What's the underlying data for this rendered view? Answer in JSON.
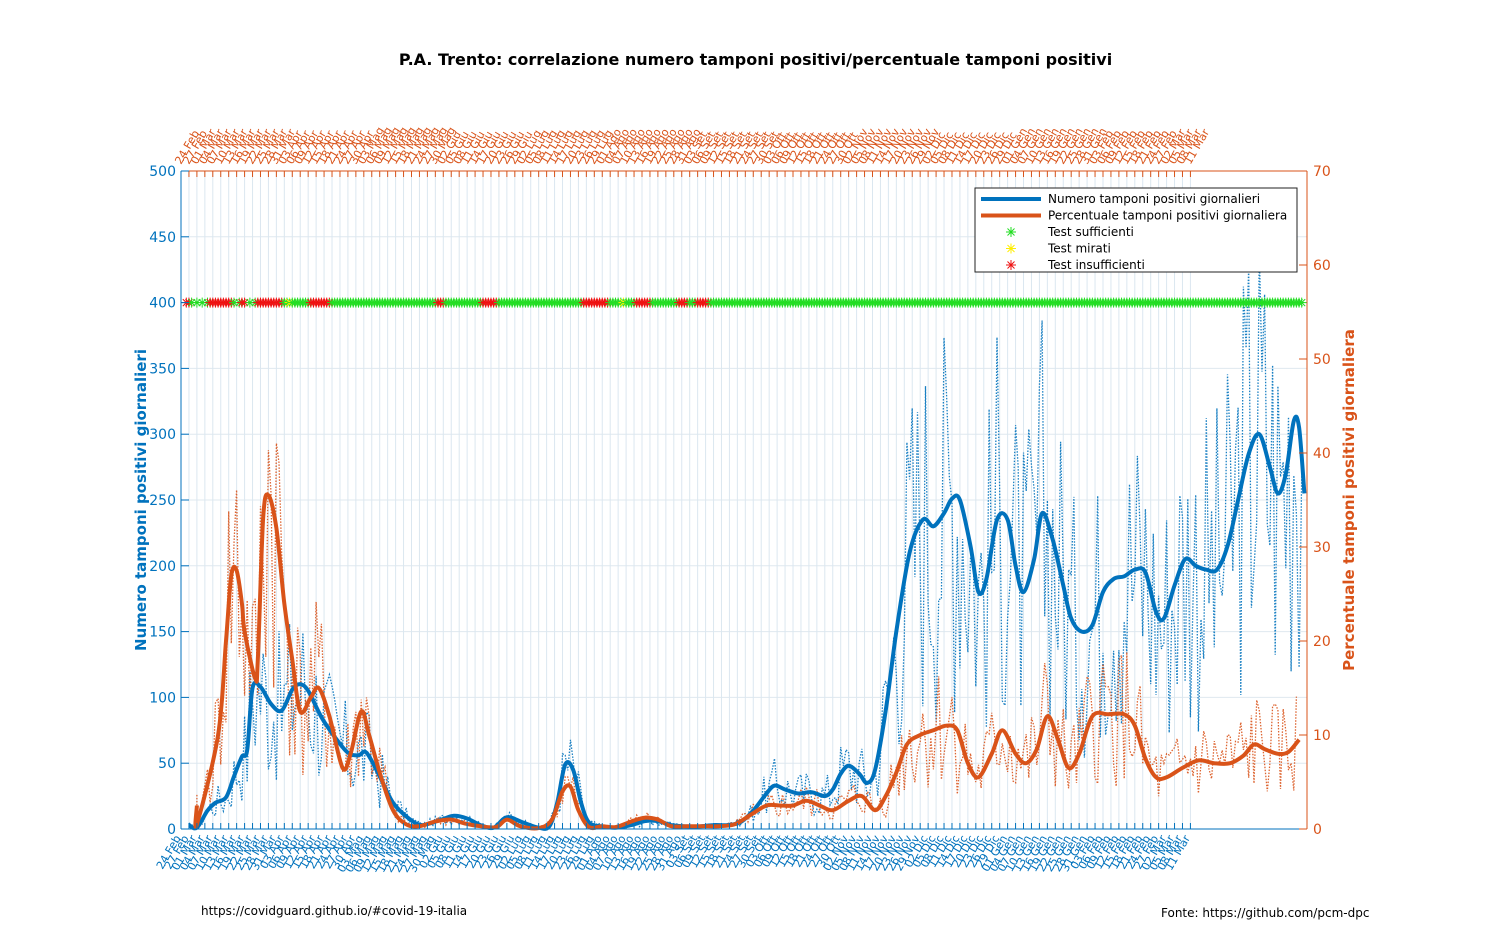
{
  "chart_data": {
    "type": "line",
    "title": "P.A. Trento: correlazione numero tamponi positivi/percentuale tamponi positivi",
    "ylabel_left": "Numero tamponi positivi giornalieri",
    "ylabel_right": "Percentuale tamponi positivi giornaliera",
    "ylim_left": [
      0,
      500
    ],
    "ylim_right": [
      0,
      70
    ],
    "yticks_left": [
      "0",
      "50",
      "100",
      "150",
      "200",
      "250",
      "300",
      "350",
      "400",
      "450",
      "500"
    ],
    "yticks_right": [
      "0",
      "10",
      "20",
      "30",
      "40",
      "50",
      "60",
      "70"
    ],
    "grid": true,
    "legend_position": "top-right",
    "date_range": [
      "2020-02-24",
      "2021-03-11"
    ],
    "x_tick_labels_sample": [
      "24 Feb",
      "27 Feb",
      "01 Mar",
      "04 Mar",
      "07 Mar",
      "10 Mar",
      "13 Mar",
      "16 Mar",
      "19 Mar",
      "22 Mar",
      "25 Mar",
      "28 Mar",
      "31 Mar",
      "03 Apr",
      "06 Apr",
      "09 Apr",
      "12 Apr",
      "15 Apr",
      "18 Apr",
      "21 Apr",
      "24 Apr",
      "27 Apr",
      "30 Apr",
      "03 Mag",
      "06 Mag",
      "09 Mag",
      "12 Mag",
      "15 Mag",
      "18 Mag",
      "21 Mag",
      "24 Mag",
      "27 Mag",
      "30 Mag",
      "02 Giu",
      "05 Giu",
      "08 Giu",
      "11 Giu",
      "14 Giu",
      "17 Giu",
      "20 Giu",
      "23 Giu",
      "26 Giu",
      "29 Giu",
      "02 Lug",
      "05 Lug",
      "08 Lug",
      "11 Lug",
      "14 Lug",
      "17 Lug",
      "20 Lug",
      "23 Lug",
      "26 Lug",
      "29 Lug",
      "01 Ago",
      "04 Ago",
      "07 Ago",
      "10 Ago",
      "13 Ago",
      "16 Ago",
      "19 Ago",
      "22 Ago",
      "25 Ago",
      "28 Ago",
      "31 Ago",
      "03 Set",
      "06 Set",
      "09 Set",
      "12 Set",
      "15 Set",
      "18 Set",
      "21 Set",
      "24 Set",
      "27 Set",
      "30 Set",
      "03 Ott",
      "06 Ott",
      "09 Ott",
      "12 Ott",
      "15 Ott",
      "18 Ott",
      "21 Ott",
      "24 Ott",
      "27 Ott",
      "30 Ott",
      "02 Nov",
      "05 Nov",
      "08 Nov",
      "11 Nov",
      "14 Nov",
      "17 Nov",
      "20 Nov",
      "23 Nov",
      "26 Nov",
      "29 Nov",
      "02 Dic",
      "05 Dic",
      "08 Dic",
      "11 Dic",
      "14 Dic",
      "17 Dic",
      "20 Dic",
      "23 Dic",
      "26 Dic",
      "29 Dic",
      "01 Gen",
      "04 Gen",
      "07 Gen",
      "10 Gen",
      "13 Gen",
      "16 Gen",
      "19 Gen",
      "22 Gen",
      "25 Gen",
      "28 Gen",
      "31 Gen",
      "03 Feb",
      "06 Feb",
      "09 Feb",
      "12 Feb",
      "15 Feb",
      "18 Feb",
      "21 Feb",
      "24 Feb",
      "27 Feb",
      "02 Mar",
      "05 Mar",
      "08 Mar",
      "11 Mar"
    ],
    "series": [
      {
        "name": "Numero tamponi positivi giornalieri",
        "axis": "left",
        "color": "#0072BD",
        "points": [
          [
            "2020-02-27",
            3
          ],
          [
            "2020-03-01",
            1
          ],
          [
            "2020-03-05",
            14
          ],
          [
            "2020-03-08",
            20
          ],
          [
            "2020-03-12",
            24
          ],
          [
            "2020-03-15",
            40
          ],
          [
            "2020-03-18",
            55
          ],
          [
            "2020-03-20",
            60
          ],
          [
            "2020-03-22",
            107
          ],
          [
            "2020-03-25",
            108
          ],
          [
            "2020-03-29",
            95
          ],
          [
            "2020-04-02",
            90
          ],
          [
            "2020-04-06",
            106
          ],
          [
            "2020-04-09",
            110
          ],
          [
            "2020-04-12",
            105
          ],
          [
            "2020-04-17",
            85
          ],
          [
            "2020-04-22",
            70
          ],
          [
            "2020-04-27",
            58
          ],
          [
            "2020-05-01",
            56
          ],
          [
            "2020-05-04",
            58
          ],
          [
            "2020-05-09",
            40
          ],
          [
            "2020-05-14",
            20
          ],
          [
            "2020-05-20",
            8
          ],
          [
            "2020-05-25",
            3
          ],
          [
            "2020-06-01",
            7
          ],
          [
            "2020-06-06",
            10
          ],
          [
            "2020-06-11",
            8
          ],
          [
            "2020-06-16",
            3
          ],
          [
            "2020-06-21",
            1
          ],
          [
            "2020-06-26",
            9
          ],
          [
            "2020-07-02",
            5
          ],
          [
            "2020-07-08",
            1
          ],
          [
            "2020-07-12",
            2
          ],
          [
            "2020-07-15",
            20
          ],
          [
            "2020-07-18",
            49
          ],
          [
            "2020-07-21",
            45
          ],
          [
            "2020-07-24",
            20
          ],
          [
            "2020-07-27",
            5
          ],
          [
            "2020-08-01",
            2
          ],
          [
            "2020-08-06",
            1
          ],
          [
            "2020-08-12",
            3
          ],
          [
            "2020-08-17",
            6
          ],
          [
            "2020-08-22",
            6
          ],
          [
            "2020-08-27",
            3
          ],
          [
            "2020-09-02",
            2
          ],
          [
            "2020-09-07",
            2
          ],
          [
            "2020-09-12",
            3
          ],
          [
            "2020-09-17",
            3
          ],
          [
            "2020-09-22",
            5
          ],
          [
            "2020-09-27",
            14
          ],
          [
            "2020-10-02",
            27
          ],
          [
            "2020-10-05",
            33
          ],
          [
            "2020-10-09",
            30
          ],
          [
            "2020-10-14",
            27
          ],
          [
            "2020-10-19",
            28
          ],
          [
            "2020-10-24",
            25
          ],
          [
            "2020-10-27",
            30
          ],
          [
            "2020-10-30",
            42
          ],
          [
            "2020-11-02",
            48
          ],
          [
            "2020-11-06",
            42
          ],
          [
            "2020-11-09",
            35
          ],
          [
            "2020-11-12",
            45
          ],
          [
            "2020-11-16",
            90
          ],
          [
            "2020-11-20",
            150
          ],
          [
            "2020-11-25",
            210
          ],
          [
            "2020-11-30",
            235
          ],
          [
            "2020-12-04",
            230
          ],
          [
            "2020-12-08",
            240
          ],
          [
            "2020-12-11",
            251
          ],
          [
            "2020-12-14",
            250
          ],
          [
            "2020-12-18",
            215
          ],
          [
            "2020-12-21",
            180
          ],
          [
            "2020-12-24",
            190
          ],
          [
            "2020-12-28",
            235
          ],
          [
            "2021-01-01",
            235
          ],
          [
            "2021-01-04",
            200
          ],
          [
            "2021-01-07",
            180
          ],
          [
            "2021-01-11",
            205
          ],
          [
            "2021-01-14",
            240
          ],
          [
            "2021-01-18",
            220
          ],
          [
            "2021-01-22",
            185
          ],
          [
            "2021-01-25",
            160
          ],
          [
            "2021-01-29",
            150
          ],
          [
            "2021-02-02",
            155
          ],
          [
            "2021-02-06",
            180
          ],
          [
            "2021-02-10",
            190
          ],
          [
            "2021-02-14",
            192
          ],
          [
            "2021-02-18",
            197
          ],
          [
            "2021-02-22",
            195
          ],
          [
            "2021-02-26",
            165
          ],
          [
            "2021-03-01",
            160
          ],
          [
            "2021-03-05",
            185
          ],
          [
            "2021-03-09",
            205
          ],
          [
            "2021-03-13",
            200
          ],
          [
            "2021-03-17",
            197
          ],
          [
            "2021-03-21",
            197
          ],
          [
            "2021-03-25",
            215
          ],
          [
            "2021-03-29",
            250
          ],
          [
            "2021-04-02",
            285
          ],
          [
            "2021-04-06",
            300
          ],
          [
            "2021-04-10",
            275
          ],
          [
            "2021-04-13",
            255
          ],
          [
            "2021-04-16",
            270
          ],
          [
            "2021-04-19",
            310
          ],
          [
            "2021-04-21",
            305
          ],
          [
            "2021-04-23",
            255
          ]
        ]
      },
      {
        "name": "Percentuale tamponi positivi giornaliera",
        "axis": "right",
        "color": "#D95319",
        "points": [
          [
            "2020-03-01",
            2.5
          ],
          [
            "2020-03-01",
            0.5
          ],
          [
            "2020-03-09",
            10
          ],
          [
            "2020-03-12",
            20
          ],
          [
            "2020-03-14",
            27
          ],
          [
            "2020-03-16",
            27.5
          ],
          [
            "2020-03-18",
            24
          ],
          [
            "2020-03-19",
            21
          ],
          [
            "2020-03-23",
            16
          ],
          [
            "2020-03-24",
            18
          ],
          [
            "2020-03-26",
            33
          ],
          [
            "2020-03-28",
            35.5
          ],
          [
            "2020-03-31",
            32
          ],
          [
            "2020-04-03",
            24
          ],
          [
            "2020-04-06",
            18
          ],
          [
            "2020-04-09",
            12.5
          ],
          [
            "2020-04-13",
            14
          ],
          [
            "2020-04-16",
            15
          ],
          [
            "2020-04-20",
            12
          ],
          [
            "2020-04-25",
            6.5
          ],
          [
            "2020-04-28",
            8
          ],
          [
            "2020-05-02",
            12.5
          ],
          [
            "2020-05-05",
            10
          ],
          [
            "2020-05-09",
            6
          ],
          [
            "2020-05-14",
            2
          ],
          [
            "2020-05-19",
            0.5
          ],
          [
            "2020-05-24",
            0.3
          ],
          [
            "2020-05-30",
            0.8
          ],
          [
            "2020-06-05",
            1
          ],
          [
            "2020-06-10",
            0.6
          ],
          [
            "2020-06-16",
            0.3
          ],
          [
            "2020-06-22",
            0.2
          ],
          [
            "2020-06-26",
            1
          ],
          [
            "2020-07-01",
            0.3
          ],
          [
            "2020-07-08",
            0.1
          ],
          [
            "2020-07-13",
            1
          ],
          [
            "2020-07-17",
            4
          ],
          [
            "2020-07-20",
            4.5
          ],
          [
            "2020-07-23",
            2
          ],
          [
            "2020-07-27",
            0.2
          ],
          [
            "2020-08-01",
            0.3
          ],
          [
            "2020-08-06",
            0.2
          ],
          [
            "2020-08-12",
            0.8
          ],
          [
            "2020-08-17",
            1.2
          ],
          [
            "2020-08-22",
            1
          ],
          [
            "2020-08-27",
            0.3
          ],
          [
            "2020-09-02",
            0.3
          ],
          [
            "2020-09-08",
            0.3
          ],
          [
            "2020-09-14",
            0.3
          ],
          [
            "2020-09-20",
            0.5
          ],
          [
            "2020-09-26",
            1.5
          ],
          [
            "2020-10-02",
            2.5
          ],
          [
            "2020-10-07",
            2.5
          ],
          [
            "2020-10-12",
            2.5
          ],
          [
            "2020-10-17",
            3
          ],
          [
            "2020-10-22",
            2.5
          ],
          [
            "2020-10-27",
            2
          ],
          [
            "2020-11-02",
            3
          ],
          [
            "2020-11-07",
            3.5
          ],
          [
            "2020-11-12",
            2
          ],
          [
            "2020-11-16",
            3.5
          ],
          [
            "2020-11-20",
            6
          ],
          [
            "2020-11-24",
            9
          ],
          [
            "2020-11-29",
            10
          ],
          [
            "2020-12-04",
            10.5
          ],
          [
            "2020-12-09",
            11
          ],
          [
            "2020-12-13",
            10.5
          ],
          [
            "2020-12-17",
            7
          ],
          [
            "2020-12-21",
            5.5
          ],
          [
            "2020-12-26",
            8
          ],
          [
            "2020-12-30",
            10.5
          ],
          [
            "2021-01-04",
            8
          ],
          [
            "2021-01-08",
            7
          ],
          [
            "2021-01-12",
            8.5
          ],
          [
            "2021-01-16",
            12
          ],
          [
            "2021-01-20",
            9.5
          ],
          [
            "2021-01-24",
            6.5
          ],
          [
            "2021-01-28",
            8
          ],
          [
            "2021-02-02",
            12
          ],
          [
            "2021-02-08",
            12.2
          ],
          [
            "2021-02-14",
            12.2
          ],
          [
            "2021-02-18",
            11
          ],
          [
            "2021-02-22",
            7.5
          ],
          [
            "2021-02-26",
            5.5
          ],
          [
            "2021-03-02",
            5.5
          ],
          [
            "2021-03-08",
            6.5
          ],
          [
            "2021-03-14",
            7.3
          ],
          [
            "2021-03-20",
            7
          ],
          [
            "2021-03-26",
            7
          ],
          [
            "2021-03-31",
            7.8
          ],
          [
            "2021-04-04",
            9
          ],
          [
            "2021-04-08",
            8.5
          ],
          [
            "2021-04-13",
            8
          ],
          [
            "2021-04-17",
            8.2
          ],
          [
            "2021-04-21",
            9.5
          ]
        ]
      }
    ],
    "test_markers": {
      "value": 400,
      "legend": [
        {
          "label": "Test sufficienti",
          "color": "#22dd22"
        },
        {
          "label": "Test mirati",
          "color": "#ffee00"
        },
        {
          "label": "Test insufficienti",
          "color": "#ee1111"
        }
      ],
      "red_ranges": [
        [
          "2020-02-26",
          "2020-02-27"
        ],
        [
          "2020-03-06",
          "2020-03-14"
        ],
        [
          "2020-03-18",
          "2020-03-19"
        ],
        [
          "2020-03-24",
          "2020-04-02"
        ],
        [
          "2020-04-13",
          "2020-04-20"
        ],
        [
          "2020-05-31",
          "2020-06-02"
        ],
        [
          "2020-06-17",
          "2020-06-22"
        ],
        [
          "2020-07-25",
          "2020-08-03"
        ],
        [
          "2020-08-14",
          "2020-08-19"
        ],
        [
          "2020-08-30",
          "2020-09-02"
        ],
        [
          "2020-09-06",
          "2020-09-10"
        ]
      ],
      "yellow_dates": [
        "2020-02-27",
        "2020-04-05",
        "2020-08-09"
      ],
      "sufficient_range": [
        "2020-04-03",
        "2021-04-22"
      ]
    }
  },
  "footer": {
    "left": "https://covidguard.github.io/#covid-19-italia",
    "right": "Fonte: https://github.com/pcm-dpc"
  }
}
